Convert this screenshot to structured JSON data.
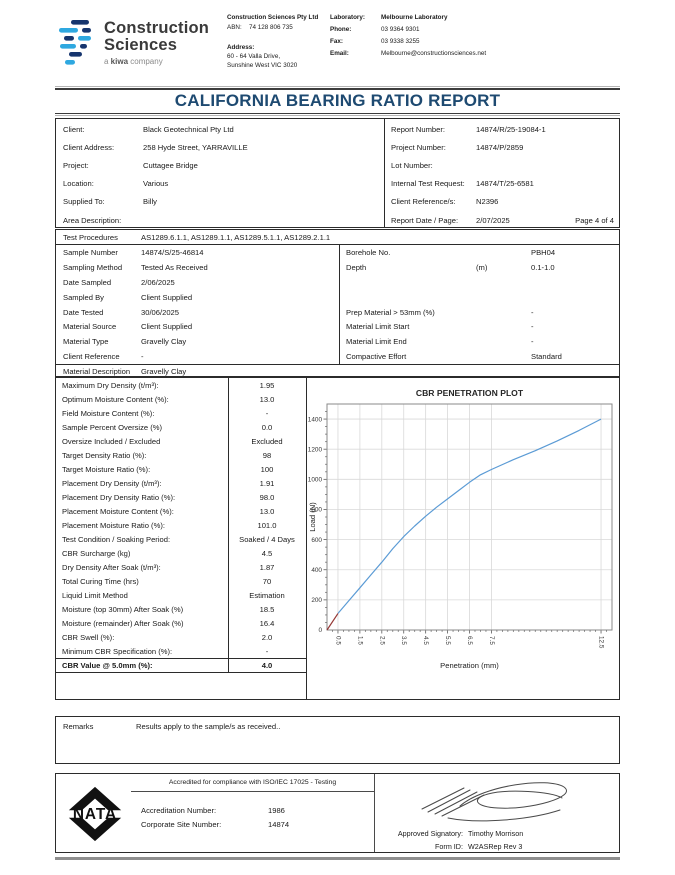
{
  "colors": {
    "title": "#1E4A71",
    "logo_blue": "#2EA8E0",
    "logo_navy": "#16356E",
    "chart_line": "#5B9BD5",
    "chart_seating_line": "#953735"
  },
  "brand": {
    "name_line1": "Construction",
    "name_line2": "Sciences",
    "tagline_pre": "a ",
    "tagline_kiwa": "kiwa",
    "tagline_post": " company",
    "company": "Construction Sciences Pty Ltd",
    "abn_label": "ABN:",
    "abn": "74 128 806 735",
    "address_label": "Address:",
    "address_line1": "60 - 64 Valla Drive,",
    "address_line2": "Sunshine West VIC 3020",
    "laboratory_label": "Laboratory:",
    "laboratory": "Melbourne Laboratory",
    "phone_label": "Phone:",
    "phone": "03 9364 9301",
    "fax_label": "Fax:",
    "fax": "03 9338 3255",
    "email_label": "Email:",
    "email": "Melbourne@constructionsciences.net"
  },
  "title": "CALIFORNIA BEARING RATIO REPORT",
  "info": {
    "left": [
      {
        "label": "Client:",
        "value": "Black Geotechnical Pty Ltd"
      },
      {
        "label": "Client Address:",
        "value": "258 Hyde Street, YARRAVILLE"
      },
      {
        "label": "Project:",
        "value": "Cuttagee Bridge"
      },
      {
        "label": "Location:",
        "value": "Various"
      },
      {
        "label": "Supplied To:",
        "value": "Billy"
      },
      {
        "label": "Area Description:",
        "value": ""
      }
    ],
    "right": [
      {
        "label": "Report Number:",
        "value": "14874/R/25-19084-1"
      },
      {
        "label": "Project Number:",
        "value": "14874/P/2859"
      },
      {
        "label": "Lot Number:",
        "value": ""
      },
      {
        "label": "Internal Test Request:",
        "value": "14874/T/25-6581"
      },
      {
        "label": "Client Reference/s:",
        "value": "N2396"
      },
      {
        "label": "Report Date / Page:",
        "value": "2/07/2025"
      }
    ],
    "page": "Page 4 of 4"
  },
  "procedures": {
    "label": "Test Procedures",
    "value": "AS1289.6.1.1, AS1289.1.1, AS1289.5.1.1, AS1289.2.1.1"
  },
  "sample": {
    "left": [
      {
        "label": "Sample Number",
        "value": "14874/S/25-46814"
      },
      {
        "label": "Sampling Method",
        "value": "Tested As Received"
      },
      {
        "label": "Date Sampled",
        "value": "2/06/2025"
      },
      {
        "label": "Sampled By",
        "value": "Client Supplied"
      },
      {
        "label": "Date Tested",
        "value": "30/06/2025"
      },
      {
        "label": "Material Source",
        "value": "Client Supplied"
      },
      {
        "label": "Material Type",
        "value": "Gravelly Clay"
      },
      {
        "label": "Client Reference",
        "value": "-"
      }
    ],
    "right": [
      {
        "label": "Borehole No.",
        "unit": "",
        "value": "PBH04"
      },
      {
        "label": "Depth",
        "unit": "(m)",
        "value": "0.1-1.0"
      },
      {
        "label": "",
        "unit": "",
        "value": ""
      },
      {
        "label": "",
        "unit": "",
        "value": ""
      },
      {
        "label": "Prep Material > 53mm (%)",
        "unit": "",
        "value": "-"
      },
      {
        "label": "Material Limit Start",
        "unit": "",
        "value": "-"
      },
      {
        "label": "Material Limit End",
        "unit": "",
        "value": "-"
      },
      {
        "label": "Compactive Effort",
        "unit": "",
        "value": "Standard"
      }
    ]
  },
  "material_description": {
    "label": "Material Description",
    "value": "Gravelly Clay"
  },
  "results": {
    "rows": [
      {
        "label": "Maximum Dry Density (t/m³):",
        "value": "1.95"
      },
      {
        "label": "Optimum Moisture Content (%):",
        "value": "13.0"
      },
      {
        "label": "Field Moisture Content (%):",
        "value": "-"
      },
      {
        "label": "Sample Percent Oversize  (%)",
        "value": "0.0"
      },
      {
        "label": "Oversize Included / Excluded",
        "value": "Excluded"
      },
      {
        "label": "Target Density Ratio (%):",
        "value": "98"
      },
      {
        "label": "Target Moisture Ratio (%):",
        "value": "100"
      },
      {
        "label": "Placement Dry Density (t/m³):",
        "value": "1.91"
      },
      {
        "label": "Placement Dry Density Ratio (%):",
        "value": "98.0"
      },
      {
        "label": "Placement Moisture Content (%):",
        "value": "13.0"
      },
      {
        "label": "Placement Moisture Ratio (%):",
        "value": "101.0"
      },
      {
        "label": "Test Condition / Soaking Period:",
        "value": "Soaked / 4 Days"
      },
      {
        "label": "CBR Surcharge (kg)",
        "value": "4.5"
      },
      {
        "label": "Dry Density After Soak (t/m³):",
        "value": "1.87"
      },
      {
        "label": "Total Curing Time (hrs)",
        "value": "70"
      },
      {
        "label": "Liquid Limit Method",
        "value": "Estimation"
      },
      {
        "label": "Moisture (top 30mm) After Soak (%)",
        "value": "18.5"
      },
      {
        "label": "Moisture (remainder) After Soak (%)",
        "value": "16.4"
      },
      {
        "label": "CBR Swell (%):",
        "value": "2.0"
      },
      {
        "label": "Minimum CBR Specification (%):",
        "value": "-"
      },
      {
        "label": "CBR Value @ 5.0mm (%):",
        "value": "4.0"
      }
    ]
  },
  "chart_data": {
    "type": "line",
    "title": "CBR PENETRATION PLOT",
    "xlabel": "Penetration (mm)",
    "ylabel": "Load (N)",
    "xlim": [
      0,
      13
    ],
    "ylim": [
      0,
      1500
    ],
    "x_ticks": [
      0.5,
      1.5,
      2.5,
      3.5,
      4.5,
      5.5,
      6.5,
      7.5,
      12.5
    ],
    "y_ticks": [
      0,
      200,
      400,
      600,
      800,
      1000,
      1200,
      1400
    ],
    "grid": true,
    "legend_position": "none",
    "series": [
      {
        "name": "seating-segment",
        "color": "#953735",
        "points": [
          [
            0,
            0
          ],
          [
            0.5,
            110
          ]
        ]
      },
      {
        "name": "penetration-curve",
        "color": "#5B9BD5",
        "points": [
          [
            0.5,
            110
          ],
          [
            1,
            195
          ],
          [
            1.5,
            280
          ],
          [
            2,
            365
          ],
          [
            2.5,
            450
          ],
          [
            3,
            540
          ],
          [
            3.5,
            620
          ],
          [
            4,
            690
          ],
          [
            4.5,
            755
          ],
          [
            5,
            815
          ],
          [
            5.5,
            870
          ],
          [
            6,
            925
          ],
          [
            6.5,
            980
          ],
          [
            7,
            1030
          ],
          [
            7.5,
            1065
          ],
          [
            8.5,
            1130
          ],
          [
            9.5,
            1190
          ],
          [
            10.5,
            1255
          ],
          [
            11.5,
            1325
          ],
          [
            12.5,
            1400
          ]
        ]
      }
    ]
  },
  "remarks": {
    "label": "Remarks",
    "text": "Results apply to the sample/s as received.."
  },
  "footer": {
    "nata_text": "NATA",
    "accredited_text": "Accredited for compliance with ISO/IEC 17025 - Testing",
    "accreditation_number_label": "Accreditation Number:",
    "accreditation_number": "1986",
    "corporate_site_label": "Corporate Site Number:",
    "corporate_site_number": "14874",
    "approved_signatory_label": "Approved Signatory:",
    "approved_signatory": "Timothy Morrison",
    "form_id_label": "Form ID:",
    "form_id": "W2ASRep Rev 3"
  }
}
